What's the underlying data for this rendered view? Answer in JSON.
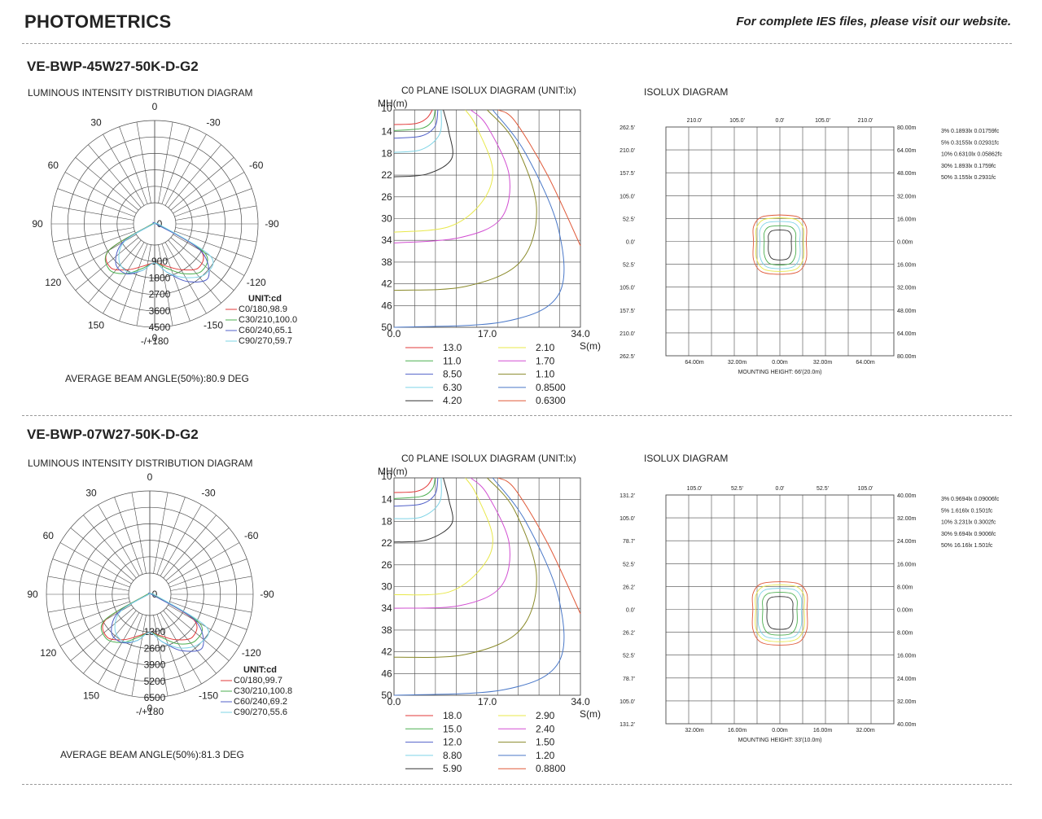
{
  "header": {
    "title": "PHOTOMETRICS",
    "note": "For complete IES files, please visit our website."
  },
  "colors": {
    "grid": "#4a4a4a",
    "series": [
      "#e23a3a",
      "#4caf50",
      "#5060c8",
      "#7fd4e6",
      "#333333",
      "#e8e84a",
      "#d24fd2",
      "#8a8a2a",
      "#4a78c8",
      "#e05a3a"
    ]
  },
  "products": [
    {
      "model": "VE-BWP-45W27-50K-D-G2",
      "lid": {
        "title": "LUMINOUS INTENSITY DISTRIBUTION DIAGRAM",
        "angle_labels": [
          "-/+180",
          "-150",
          "150",
          "-120",
          "120",
          "-90",
          "90",
          "-60",
          "60",
          "-30",
          "30",
          "0"
        ],
        "radial_labels": [
          "0",
          "900",
          "1800",
          "2700",
          "3600",
          "4500"
        ],
        "max_value": 4500,
        "legend_title": "UNIT:cd",
        "legend": [
          "C0/180,98.9",
          "C30/210,100.0",
          "C60/240,65.1",
          "C90/270,59.7"
        ],
        "beam_angle": "AVERAGE BEAM ANGLE(50%):80.9 DEG"
      },
      "c0": {
        "title": "C0 PLANE ISOLUX DIAGRAM (UNIT:lx)",
        "y_axis_label": "MH(m)",
        "x_axis_label": "S(m)",
        "y_ticks": [
          "10",
          "14",
          "18",
          "22",
          "26",
          "30",
          "34",
          "38",
          "42",
          "46",
          "50"
        ],
        "x_ticks": [
          "0.0",
          "17.0",
          "34.0"
        ],
        "legend_left": [
          "13.0",
          "11.0",
          "8.50",
          "6.30",
          "4.20"
        ],
        "legend_right": [
          "2.10",
          "1.70",
          "1.10",
          "0.8500",
          "0.6300"
        ]
      },
      "isolux": {
        "title": "ISOLUX DIAGRAM",
        "top_labels": [
          "210.0'",
          "105.0'",
          "0.0'",
          "105.0'",
          "210.0'"
        ],
        "left_labels": [
          "262.5'",
          "210.0'",
          "157.5'",
          "105.0'",
          "52.5'",
          "0.0'",
          "52.5'",
          "105.0'",
          "157.5'",
          "210.0'",
          "262.5'"
        ],
        "right_labels": [
          "80.00m",
          "64.00m",
          "48.00m",
          "32.00m",
          "16.00m",
          "0.00m",
          "16.00m",
          "32.00m",
          "48.00m",
          "64.00m",
          "80.00m"
        ],
        "bottom_labels": [
          "64.00m",
          "32.00m",
          "0.00m",
          "32.00m",
          "64.00m"
        ],
        "footer": "MOUNTING HEIGHT: 66'(20.0m)",
        "legend": [
          "3% 0.1893lx 0.01759fc",
          "5% 0.3155lx 0.02931fc",
          "10% 0.6310lx 0.05862fc",
          "30% 1.893lx 0.1759fc",
          "50% 3.155lx 0.2931fc"
        ]
      }
    },
    {
      "model": "VE-BWP-07W27-50K-D-G2",
      "lid": {
        "title": "LUMINOUS INTENSITY DISTRIBUTION DIAGRAM",
        "angle_labels": [
          "-/+180",
          "-150",
          "150",
          "-120",
          "120",
          "-90",
          "90",
          "-60",
          "60",
          "-30",
          "30",
          "0"
        ],
        "radial_labels": [
          "0",
          "1300",
          "2600",
          "3900",
          "5200",
          "6500"
        ],
        "max_value": 6500,
        "legend_title": "UNIT:cd",
        "legend": [
          "C0/180,99.7",
          "C30/210,100.8",
          "C60/240,69.2",
          "C90/270,55.6"
        ],
        "beam_angle": "AVERAGE BEAM ANGLE(50%):81.3 DEG"
      },
      "c0": {
        "title": "C0 PLANE ISOLUX DIAGRAM (UNIT:lx)",
        "y_axis_label": "MH(m)",
        "x_axis_label": "S(m)",
        "y_ticks": [
          "10",
          "14",
          "18",
          "22",
          "26",
          "30",
          "34",
          "38",
          "42",
          "46",
          "50"
        ],
        "x_ticks": [
          "0.0",
          "17.0",
          "34.0"
        ],
        "legend_left": [
          "18.0",
          "15.0",
          "12.0",
          "8.80",
          "5.90"
        ],
        "legend_right": [
          "2.90",
          "2.40",
          "1.50",
          "1.20",
          "0.8800"
        ]
      },
      "isolux": {
        "title": "ISOLUX DIAGRAM",
        "top_labels": [
          "105.0'",
          "52.5'",
          "0.0'",
          "52.5'",
          "105.0'"
        ],
        "left_labels": [
          "131.2'",
          "105.0'",
          "78.7'",
          "52.5'",
          "26.2'",
          "0.0'",
          "26.2'",
          "52.5'",
          "78.7'",
          "105.0'",
          "131.2'"
        ],
        "right_labels": [
          "40.00m",
          "32.00m",
          "24.00m",
          "16.00m",
          "8.00m",
          "0.00m",
          "8.00m",
          "16.00m",
          "24.00m",
          "32.00m",
          "40.00m"
        ],
        "bottom_labels": [
          "32.00m",
          "16.00m",
          "0.00m",
          "16.00m",
          "32.00m"
        ],
        "footer": "MOUNTING HEIGHT: 33'(10.0m)",
        "legend": [
          "3% 0.9694lx 0.09006fc",
          "5% 1.616lx 0.1501fc",
          "10% 3.231lx 0.3002fc",
          "30% 9.694lx 0.9006fc",
          "50% 16.16lx 1.501fc"
        ]
      }
    }
  ],
  "chart_data": [
    {
      "type": "polar",
      "title": "LUMINOUS INTENSITY DISTRIBUTION DIAGRAM",
      "unit": "UNIT:cd",
      "radial_range": [
        0,
        4500
      ],
      "angles_deg": [
        -90,
        -75,
        -60,
        -45,
        -30,
        -15,
        0,
        15,
        30,
        45,
        60,
        75,
        90
      ],
      "series": [
        {
          "name": "C0/180,98.9",
          "values": [
            0,
            200,
            2300,
            2700,
            2300,
            1900,
            1700,
            1900,
            2300,
            2700,
            2300,
            200,
            0
          ]
        },
        {
          "name": "C30/210,100.0",
          "values": [
            0,
            200,
            2300,
            2800,
            2500,
            2000,
            1700,
            2000,
            2500,
            2900,
            2500,
            200,
            0
          ]
        },
        {
          "name": "C60/240,65.1",
          "values": [
            0,
            100,
            1600,
            2400,
            2500,
            2100,
            1700,
            2200,
            2900,
            3300,
            2300,
            100,
            0
          ]
        },
        {
          "name": "C90/270,59.7",
          "values": [
            0,
            100,
            1500,
            2200,
            2400,
            2100,
            1700,
            2200,
            2700,
            3100,
            2800,
            300,
            0
          ]
        }
      ]
    },
    {
      "type": "line",
      "title": "C0 PLANE ISOLUX DIAGRAM (UNIT:lx)",
      "xlabel": "S(m)",
      "ylabel": "MH(m)",
      "xlim": [
        0,
        34
      ],
      "ylim": [
        10,
        50
      ],
      "series": [
        {
          "name": "13.0",
          "points": [
            [
              0,
              12.7
            ],
            [
              4,
              12.5
            ],
            [
              6,
              11.5
            ],
            [
              7,
              10
            ]
          ]
        },
        {
          "name": "11.0",
          "points": [
            [
              0,
              13.8
            ],
            [
              5,
              13.4
            ],
            [
              7,
              12
            ],
            [
              7.5,
              10
            ]
          ]
        },
        {
          "name": "8.50",
          "points": [
            [
              0,
              15.2
            ],
            [
              5,
              14.8
            ],
            [
              7.5,
              13
            ],
            [
              8,
              10
            ]
          ]
        },
        {
          "name": "6.30",
          "points": [
            [
              0,
              17.8
            ],
            [
              5,
              17.3
            ],
            [
              8.3,
              14.5
            ],
            [
              8.6,
              10
            ]
          ]
        },
        {
          "name": "4.20",
          "points": [
            [
              0,
              22.3
            ],
            [
              6,
              21.8
            ],
            [
              10.5,
              19
            ],
            [
              10,
              14
            ],
            [
              9,
              10
            ]
          ]
        },
        {
          "name": "2.10",
          "points": [
            [
              0,
              32.5
            ],
            [
              10,
              31.5
            ],
            [
              16,
              27
            ],
            [
              18,
              21
            ],
            [
              15,
              13
            ],
            [
              13,
              10
            ]
          ]
        },
        {
          "name": "1.70",
          "points": [
            [
              0,
              34.5
            ],
            [
              12,
              33.5
            ],
            [
              19.5,
              30
            ],
            [
              21,
              22
            ],
            [
              17,
              13
            ],
            [
              14,
              10
            ]
          ]
        },
        {
          "name": "1.10",
          "points": [
            [
              0,
              43.2
            ],
            [
              13,
              42.5
            ],
            [
              23,
              38
            ],
            [
              26,
              28
            ],
            [
              22,
              16
            ],
            [
              17,
              10
            ]
          ]
        },
        {
          "name": "0.8500",
          "points": [
            [
              0,
              50
            ],
            [
              20,
              49
            ],
            [
              30,
              44
            ],
            [
              30,
              32
            ],
            [
              24,
              18
            ],
            [
              18,
              10
            ]
          ]
        },
        {
          "name": "0.6300",
          "points": [
            [
              34,
              35
            ],
            [
              28,
              22
            ],
            [
              22,
              12
            ],
            [
              19,
              10
            ]
          ]
        }
      ]
    },
    {
      "type": "contour",
      "title": "ISOLUX DIAGRAM",
      "x_unit": "m",
      "xlim": [
        -80,
        80
      ],
      "ylim": [
        -80,
        80
      ],
      "series": [
        {
          "name": "3% 0.1893lx 0.01759fc",
          "half_width": 18.5,
          "top": 18.5,
          "bottom": -23
        },
        {
          "name": "5% 0.3155lx 0.02931fc",
          "half_width": 16.5,
          "top": 16.5,
          "bottom": -21
        },
        {
          "name": "10% 0.6310lx 0.05862fc",
          "half_width": 14,
          "top": 14,
          "bottom": -19
        },
        {
          "name": "30% 1.893lx 0.1759fc",
          "half_width": 11,
          "top": 11,
          "bottom": -16.5
        },
        {
          "name": "50% 3.155lx 0.2931fc",
          "half_width": 8,
          "top": 8,
          "bottom": -13
        }
      ]
    },
    {
      "type": "polar",
      "title": "LUMINOUS INTENSITY DISTRIBUTION DIAGRAM",
      "unit": "UNIT:cd",
      "radial_range": [
        0,
        6500
      ],
      "angles_deg": [
        -90,
        -75,
        -60,
        -45,
        -30,
        -15,
        0,
        15,
        30,
        45,
        60,
        75,
        90
      ],
      "series": [
        {
          "name": "C0/180,99.7",
          "values": [
            0,
            300,
            3200,
            3800,
            3300,
            2700,
            2400,
            2700,
            3300,
            3800,
            3200,
            300,
            0
          ]
        },
        {
          "name": "C30/210,100.8",
          "values": [
            0,
            300,
            3300,
            3900,
            3500,
            2800,
            2400,
            2800,
            3600,
            4100,
            3600,
            300,
            0
          ]
        },
        {
          "name": "C60/240,69.2",
          "values": [
            0,
            150,
            2300,
            3400,
            3500,
            3000,
            2400,
            3100,
            4100,
            4700,
            3300,
            200,
            0
          ]
        },
        {
          "name": "C90/270,55.6",
          "values": [
            0,
            150,
            2100,
            3100,
            3400,
            3000,
            2400,
            3100,
            3900,
            4400,
            4100,
            500,
            0
          ]
        }
      ]
    },
    {
      "type": "line",
      "title": "C0 PLANE ISOLUX DIAGRAM (UNIT:lx)",
      "xlabel": "S(m)",
      "ylabel": "MH(m)",
      "xlim": [
        0,
        34
      ],
      "ylim": [
        10,
        50
      ],
      "series": [
        {
          "name": "18.0",
          "points": [
            [
              0,
              12.7
            ],
            [
              4,
              12.5
            ],
            [
              6,
              11.5
            ],
            [
              7,
              10
            ]
          ]
        },
        {
          "name": "15.0",
          "points": [
            [
              0,
              13.8
            ],
            [
              5,
              13.4
            ],
            [
              7,
              12
            ],
            [
              7.5,
              10
            ]
          ]
        },
        {
          "name": "12.0",
          "points": [
            [
              0,
              15.2
            ],
            [
              5,
              14.8
            ],
            [
              7.5,
              13
            ],
            [
              8,
              10
            ]
          ]
        },
        {
          "name": "8.80",
          "points": [
            [
              0,
              17.5
            ],
            [
              5,
              17.2
            ],
            [
              8.3,
              14.5
            ],
            [
              8.6,
              10
            ]
          ]
        },
        {
          "name": "5.90",
          "points": [
            [
              0,
              21.8
            ],
            [
              6,
              21.4
            ],
            [
              10.5,
              18.5
            ],
            [
              10,
              14
            ],
            [
              9,
              10
            ]
          ]
        },
        {
          "name": "2.90",
          "points": [
            [
              0,
              31.5
            ],
            [
              10,
              31
            ],
            [
              16,
              26.5
            ],
            [
              18,
              21
            ],
            [
              15,
              13
            ],
            [
              13,
              10
            ]
          ]
        },
        {
          "name": "2.40",
          "points": [
            [
              0,
              34
            ],
            [
              12,
              33.5
            ],
            [
              19.5,
              30
            ],
            [
              21,
              22
            ],
            [
              17,
              13
            ],
            [
              14,
              10
            ]
          ]
        },
        {
          "name": "1.50",
          "points": [
            [
              0,
              43
            ],
            [
              13,
              42.5
            ],
            [
              23,
              38
            ],
            [
              26,
              28
            ],
            [
              22,
              16
            ],
            [
              17,
              10
            ]
          ]
        },
        {
          "name": "1.20",
          "points": [
            [
              0,
              50
            ],
            [
              20,
              49
            ],
            [
              30,
              44
            ],
            [
              30,
              32
            ],
            [
              24,
              18
            ],
            [
              18,
              10
            ]
          ]
        },
        {
          "name": "0.8800",
          "points": [
            [
              34,
              35
            ],
            [
              28,
              22
            ],
            [
              22,
              12
            ],
            [
              19,
              10
            ]
          ]
        }
      ]
    },
    {
      "type": "contour",
      "title": "ISOLUX DIAGRAM",
      "x_unit": "m",
      "xlim": [
        -40,
        40
      ],
      "ylim": [
        -40,
        40
      ],
      "series": [
        {
          "name": "3% 0.9694lx 0.09006fc",
          "half_width": 9.5,
          "top": 9.7,
          "bottom": -12.5
        },
        {
          "name": "5% 1.616lx 0.1501fc",
          "half_width": 8.5,
          "top": 8.6,
          "bottom": -11.3
        },
        {
          "name": "10% 3.231lx 0.3002fc",
          "half_width": 7.5,
          "top": 7.4,
          "bottom": -10.2
        },
        {
          "name": "30% 9.694lx 0.9006fc",
          "half_width": 6,
          "top": 6,
          "bottom": -9
        },
        {
          "name": "50% 16.16lx 1.501fc",
          "half_width": 4.5,
          "top": 4.5,
          "bottom": -7
        }
      ]
    }
  ]
}
